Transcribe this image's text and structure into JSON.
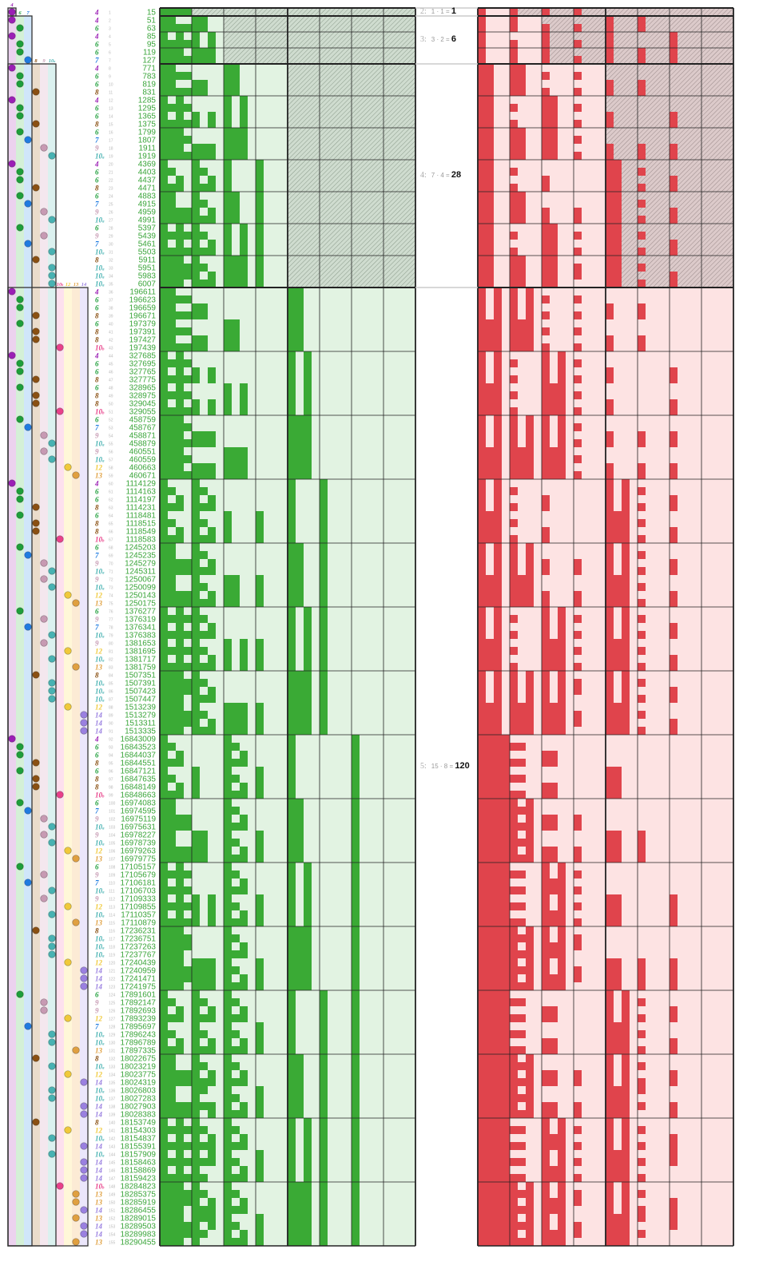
{
  "colors": {
    "green_fill": "#3aaa35",
    "green_bg": "#e2f3e2",
    "red_fill": "#e0444c",
    "red_bg": "#fde3e3",
    "number_text": "#3aa53a"
  },
  "types": {
    "4": {
      "label": "4",
      "sub": "",
      "color": "#9b1fb5",
      "tint": "#ecd2ef"
    },
    "6": {
      "label": "6",
      "sub": "",
      "color": "#1e9e3a",
      "tint": "#d4f0d7"
    },
    "7": {
      "label": "7",
      "sub": "",
      "color": "#1f7be0",
      "tint": "#d0e6fa"
    },
    "8": {
      "label": "8",
      "sub": "",
      "color": "#8a5012",
      "tint": "#eadccb"
    },
    "9": {
      "label": "9",
      "sub": "",
      "color": "#c79ab3",
      "tint": "#f4e7ee"
    },
    "10a": {
      "label": "10",
      "sub": "a",
      "color": "#48b2b2",
      "tint": "#dbf1ef"
    },
    "10b": {
      "label": "10",
      "sub": "b",
      "color": "#e8418a",
      "tint": "#fde0ee"
    },
    "12": {
      "label": "12",
      "sub": "",
      "color": "#f0c93a",
      "tint": "#fff7d8"
    },
    "13": {
      "label": "13",
      "sub": "",
      "color": "#e0a040",
      "tint": "#fcebd5"
    },
    "14": {
      "label": "14",
      "sub": "",
      "color": "#9a80e0",
      "tint": "#ebe6fb"
    }
  },
  "groups": [
    {
      "label": "2:",
      "expr": "1 · 1 =",
      "result": "1",
      "start": 1,
      "end": 1,
      "types": [
        "4"
      ]
    },
    {
      "label": "3:",
      "expr": "3 · 2 =",
      "result": "6",
      "start": 2,
      "end": 7,
      "types": [
        "6",
        "7"
      ]
    },
    {
      "label": "4:",
      "expr": "7 · 4 =",
      "result": "28",
      "start": 8,
      "end": 35,
      "types": [
        "8",
        "9",
        "10a"
      ]
    },
    {
      "label": "5:",
      "expr": "15 · 8 =",
      "result": "120",
      "start": 36,
      "end": 155,
      "types": [
        "10b",
        "12",
        "13",
        "14"
      ]
    }
  ],
  "rows": [
    [
      1,
      "4",
      15
    ],
    [
      2,
      "4",
      51
    ],
    [
      3,
      "6",
      63
    ],
    [
      4,
      "4",
      85
    ],
    [
      5,
      "6",
      95
    ],
    [
      6,
      "6",
      119
    ],
    [
      7,
      "7",
      127
    ],
    [
      8,
      "4",
      771
    ],
    [
      9,
      "6",
      783
    ],
    [
      10,
      "6",
      819
    ],
    [
      11,
      "8",
      831
    ],
    [
      12,
      "4",
      1285
    ],
    [
      13,
      "6",
      1295
    ],
    [
      14,
      "6",
      1365
    ],
    [
      15,
      "8",
      1375
    ],
    [
      16,
      "6",
      1799
    ],
    [
      17,
      "7",
      1807
    ],
    [
      18,
      "9",
      1911
    ],
    [
      19,
      "10a",
      1919
    ],
    [
      20,
      "4",
      4369
    ],
    [
      21,
      "6",
      4403
    ],
    [
      22,
      "6",
      4437
    ],
    [
      23,
      "8",
      4471
    ],
    [
      24,
      "6",
      4883
    ],
    [
      25,
      "7",
      4915
    ],
    [
      26,
      "9",
      4959
    ],
    [
      27,
      "10a",
      4991
    ],
    [
      28,
      "6",
      5397
    ],
    [
      29,
      "9",
      5439
    ],
    [
      30,
      "7",
      5461
    ],
    [
      31,
      "10a",
      5503
    ],
    [
      32,
      "8",
      5911
    ],
    [
      33,
      "10a",
      5951
    ],
    [
      34,
      "10a",
      5983
    ],
    [
      35,
      "10a",
      6007
    ],
    [
      36,
      "4",
      196611
    ],
    [
      37,
      "6",
      196623
    ],
    [
      38,
      "6",
      196659
    ],
    [
      39,
      "8",
      196671
    ],
    [
      40,
      "6",
      197379
    ],
    [
      41,
      "8",
      197391
    ],
    [
      42,
      "8",
      197427
    ],
    [
      43,
      "10b",
      197439
    ],
    [
      44,
      "4",
      327685
    ],
    [
      45,
      "6",
      327695
    ],
    [
      46,
      "6",
      327765
    ],
    [
      47,
      "8",
      327775
    ],
    [
      48,
      "6",
      328965
    ],
    [
      49,
      "8",
      328975
    ],
    [
      50,
      "8",
      329045
    ],
    [
      51,
      "10b",
      329055
    ],
    [
      52,
      "6",
      458759
    ],
    [
      53,
      "7",
      458767
    ],
    [
      54,
      "9",
      458871
    ],
    [
      55,
      "10a",
      458879
    ],
    [
      56,
      "9",
      460551
    ],
    [
      57,
      "10a",
      460559
    ],
    [
      58,
      "12",
      460663
    ],
    [
      59,
      "13",
      460671
    ],
    [
      60,
      "4",
      1114129
    ],
    [
      61,
      "6",
      1114163
    ],
    [
      62,
      "6",
      1114197
    ],
    [
      63,
      "8",
      1114231
    ],
    [
      64,
      "6",
      1118481
    ],
    [
      65,
      "8",
      1118515
    ],
    [
      66,
      "8",
      1118549
    ],
    [
      67,
      "10b",
      1118583
    ],
    [
      68,
      "6",
      1245203
    ],
    [
      69,
      "7",
      1245235
    ],
    [
      70,
      "9",
      1245279
    ],
    [
      71,
      "10a",
      1245311
    ],
    [
      72,
      "9",
      1250067
    ],
    [
      73,
      "10a",
      1250099
    ],
    [
      74,
      "12",
      1250143
    ],
    [
      75,
      "13",
      1250175
    ],
    [
      76,
      "6",
      1376277
    ],
    [
      77,
      "9",
      1376319
    ],
    [
      78,
      "7",
      1376341
    ],
    [
      79,
      "10a",
      1376383
    ],
    [
      80,
      "9",
      1381653
    ],
    [
      81,
      "12",
      1381695
    ],
    [
      82,
      "10a",
      1381717
    ],
    [
      83,
      "13",
      1381759
    ],
    [
      84,
      "8",
      1507351
    ],
    [
      85,
      "10a",
      1507391
    ],
    [
      86,
      "10a",
      1507423
    ],
    [
      87,
      "10a",
      1507447
    ],
    [
      88,
      "12",
      1513239
    ],
    [
      89,
      "14",
      1513279
    ],
    [
      90,
      "14",
      1513311
    ],
    [
      91,
      "14",
      1513335
    ],
    [
      92,
      "4",
      16843009
    ],
    [
      93,
      "6",
      16843523
    ],
    [
      94,
      "6",
      16844037
    ],
    [
      95,
      "8",
      16844551
    ],
    [
      96,
      "6",
      16847121
    ],
    [
      97,
      "8",
      16847635
    ],
    [
      98,
      "8",
      16848149
    ],
    [
      99,
      "10b",
      16848663
    ],
    [
      100,
      "6",
      16974083
    ],
    [
      101,
      "7",
      16974595
    ],
    [
      102,
      "9",
      16975119
    ],
    [
      103,
      "10a",
      16975631
    ],
    [
      104,
      "9",
      16978227
    ],
    [
      105,
      "10a",
      16978739
    ],
    [
      106,
      "12",
      16979263
    ],
    [
      107,
      "13",
      16979775
    ],
    [
      108,
      "6",
      17105157
    ],
    [
      109,
      "9",
      17105679
    ],
    [
      110,
      "7",
      17106181
    ],
    [
      111,
      "10a",
      17106703
    ],
    [
      112,
      "9",
      17109333
    ],
    [
      113,
      "12",
      17109855
    ],
    [
      114,
      "10a",
      17110357
    ],
    [
      115,
      "13",
      17110879
    ],
    [
      116,
      "8",
      17236231
    ],
    [
      117,
      "10a",
      17236751
    ],
    [
      118,
      "10a",
      17237263
    ],
    [
      119,
      "10a",
      17237767
    ],
    [
      120,
      "12",
      17240439
    ],
    [
      121,
      "14",
      17240959
    ],
    [
      122,
      "14",
      17241471
    ],
    [
      123,
      "14",
      17241975
    ],
    [
      124,
      "6",
      17891601
    ],
    [
      125,
      "9",
      17892147
    ],
    [
      126,
      "9",
      17892693
    ],
    [
      127,
      "12",
      17893239
    ],
    [
      128,
      "7",
      17895697
    ],
    [
      129,
      "10a",
      17896243
    ],
    [
      130,
      "10a",
      17896789
    ],
    [
      131,
      "13",
      17897335
    ],
    [
      132,
      "8",
      18022675
    ],
    [
      133,
      "10a",
      18023219
    ],
    [
      134,
      "12",
      18023775
    ],
    [
      135,
      "14",
      18024319
    ],
    [
      136,
      "10a",
      18026803
    ],
    [
      137,
      "10a",
      18027283
    ],
    [
      138,
      "14",
      18027903
    ],
    [
      139,
      "14",
      18028383
    ],
    [
      140,
      "8",
      18153749
    ],
    [
      141,
      "12",
      18154303
    ],
    [
      142,
      "10a",
      18154837
    ],
    [
      143,
      "14",
      18155391
    ],
    [
      144,
      "10a",
      18157909
    ],
    [
      145,
      "14",
      18158463
    ],
    [
      146,
      "14",
      18158869
    ],
    [
      147,
      "14",
      18159423
    ],
    [
      148,
      "10b",
      18284823
    ],
    [
      149,
      "13",
      18285375
    ],
    [
      150,
      "13",
      18285919
    ],
    [
      151,
      "14",
      18286455
    ],
    [
      152,
      "13",
      18289015
    ],
    [
      153,
      "14",
      18289503
    ],
    [
      154,
      "14",
      18289983
    ],
    [
      155,
      "13",
      18290455
    ]
  ]
}
